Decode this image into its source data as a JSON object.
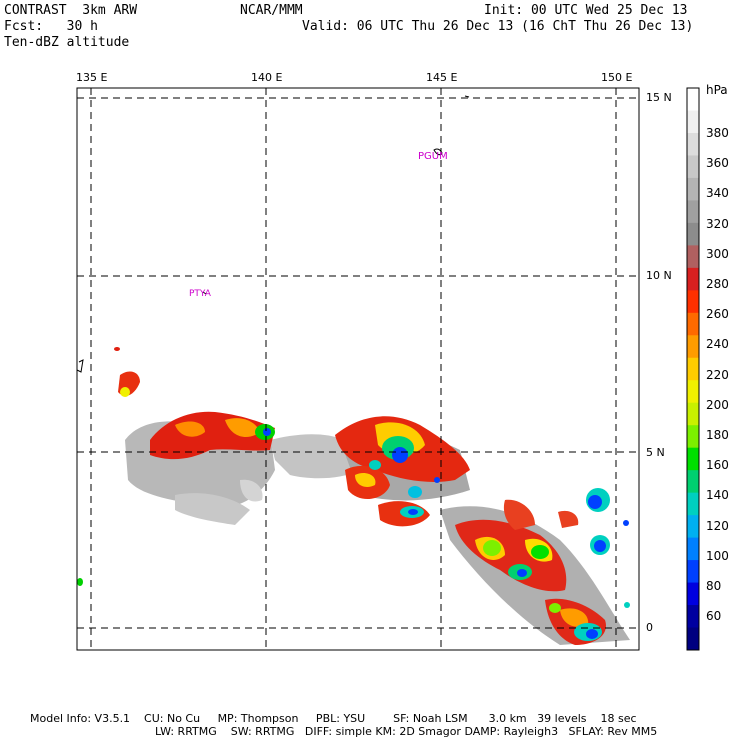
{
  "header": {
    "model_title": "CONTRAST  3km ARW",
    "center": "NCAR/MMM",
    "init": "Init: 00 UTC Wed 25 Dec 13",
    "forecast": "Fcst:   30 h",
    "valid": "Valid: 06 UTC Thu 26 Dec 13 (16 ChT Thu 26 Dec 13)",
    "field": "Ten-dBZ altitude"
  },
  "map": {
    "lon_labels": [
      "135 E",
      "140 E",
      "145 E",
      "150 E"
    ],
    "lat_labels": [
      "15 N",
      "10 N",
      "5 N",
      "0"
    ],
    "stations": [
      "PGUM",
      "PTYA"
    ],
    "land_color": "#000000",
    "station_color": "#cc00cc"
  },
  "colorbar": {
    "unit": "hPa",
    "tick_labels": [
      "380",
      "360",
      "340",
      "320",
      "300",
      "280",
      "260",
      "240",
      "220",
      "200",
      "180",
      "160",
      "140",
      "120",
      "100",
      "80",
      "60"
    ],
    "colors": [
      "#ffffff",
      "#f0f0f0",
      "#dcdcdc",
      "#c8c8c8",
      "#b4b4b4",
      "#a0a0a0",
      "#8c8c8c",
      "#b06060",
      "#d82020",
      "#ff3000",
      "#ff6a00",
      "#ff9c00",
      "#ffcc00",
      "#f0f000",
      "#c8f000",
      "#7cf000",
      "#00e000",
      "#00d070",
      "#00d0c0",
      "#00b0f0",
      "#0080ff",
      "#0040ff",
      "#0000e0",
      "#0000a0",
      "#000080"
    ]
  },
  "footer": {
    "line1": "Model Info: V3.5.1    CU: No Cu     MP: Thompson     PBL: YSU        SF: Noah LSM      3.0 km   39 levels    18 sec",
    "line2": "LW: RRTMG    SW: RRTMG   DIFF: simple KM: 2D Smagor DAMP: Rayleigh3   SFLAY: Rev MM5"
  }
}
